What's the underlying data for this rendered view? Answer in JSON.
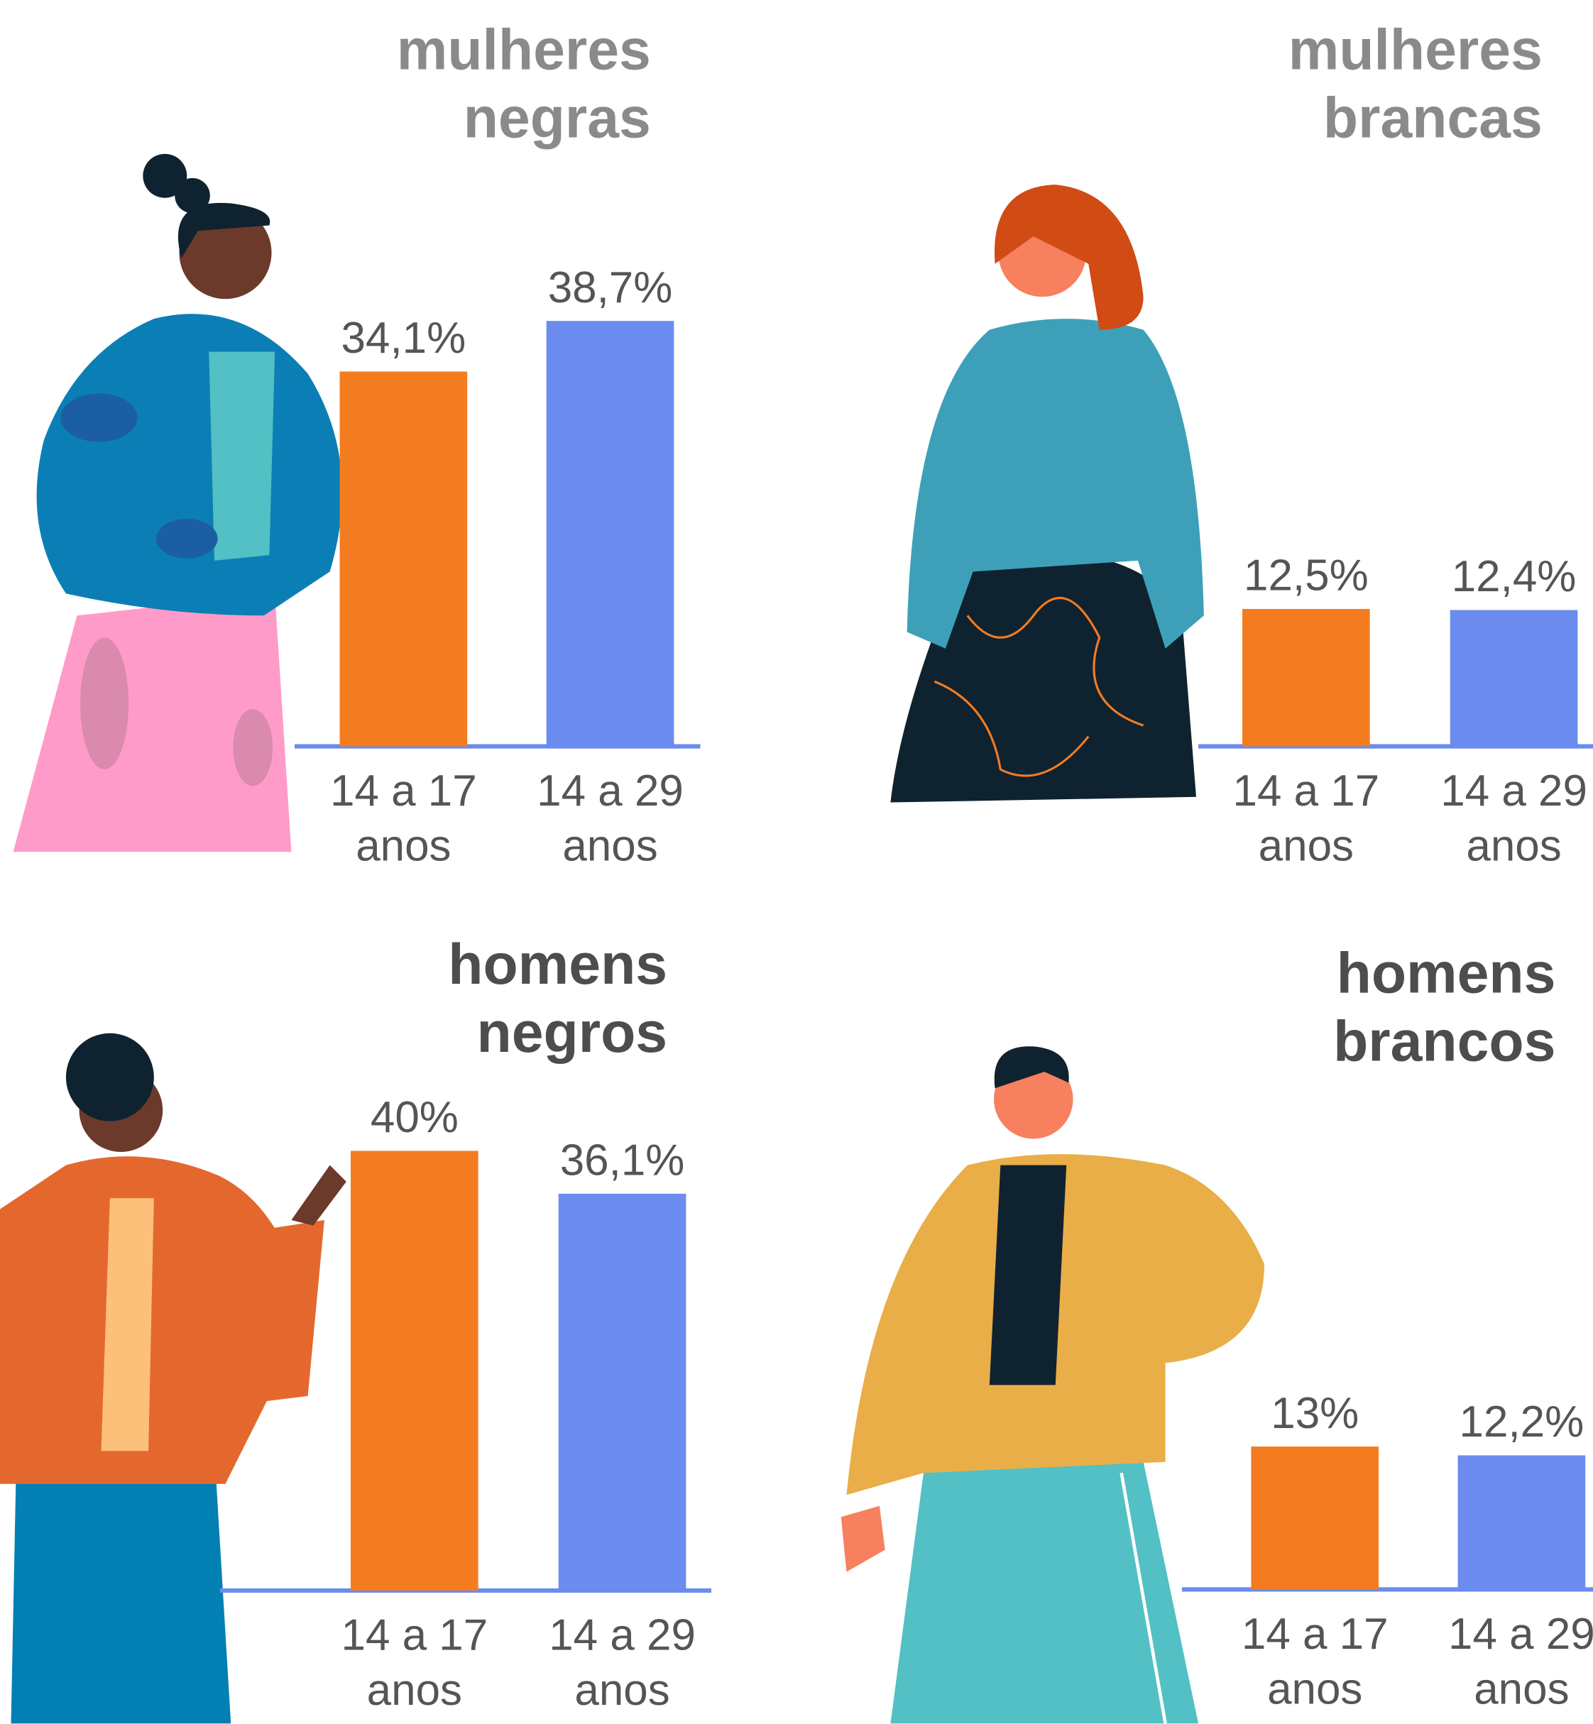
{
  "chart_data": [
    {
      "type": "bar",
      "title": "mulheres negras",
      "title_color": "#8a8a8a",
      "categories": [
        "14 a 17 anos",
        "14 a 29 anos"
      ],
      "values": [
        34.1,
        38.7
      ],
      "value_labels": [
        "34,1%",
        "38,7%"
      ],
      "colors": [
        "#f47c20",
        "#6b8bef"
      ]
    },
    {
      "type": "bar",
      "title": "mulheres brancas",
      "title_color": "#8a8a8a",
      "categories": [
        "14 a 17 anos",
        "14 a 29 anos"
      ],
      "values": [
        12.5,
        12.4
      ],
      "value_labels": [
        "12,5%",
        "12,4%"
      ],
      "colors": [
        "#f47c20",
        "#6b8bef"
      ]
    },
    {
      "type": "bar",
      "title": "homens negros",
      "title_color": "#4d4d4d",
      "categories": [
        "14 a 17 anos",
        "14 a 29 anos"
      ],
      "values": [
        40,
        36.1
      ],
      "value_labels": [
        "40%",
        "36,1%"
      ],
      "colors": [
        "#f47c20",
        "#6b8bef"
      ]
    },
    {
      "type": "bar",
      "title": "homens brancos",
      "title_color": "#4d4d4d",
      "categories": [
        "14 a 17 anos",
        "14 a 29 anos"
      ],
      "values": [
        13,
        12.2
      ],
      "value_labels": [
        "13%",
        "12,2%"
      ],
      "colors": [
        "#f47c20",
        "#6b8bef"
      ]
    }
  ]
}
